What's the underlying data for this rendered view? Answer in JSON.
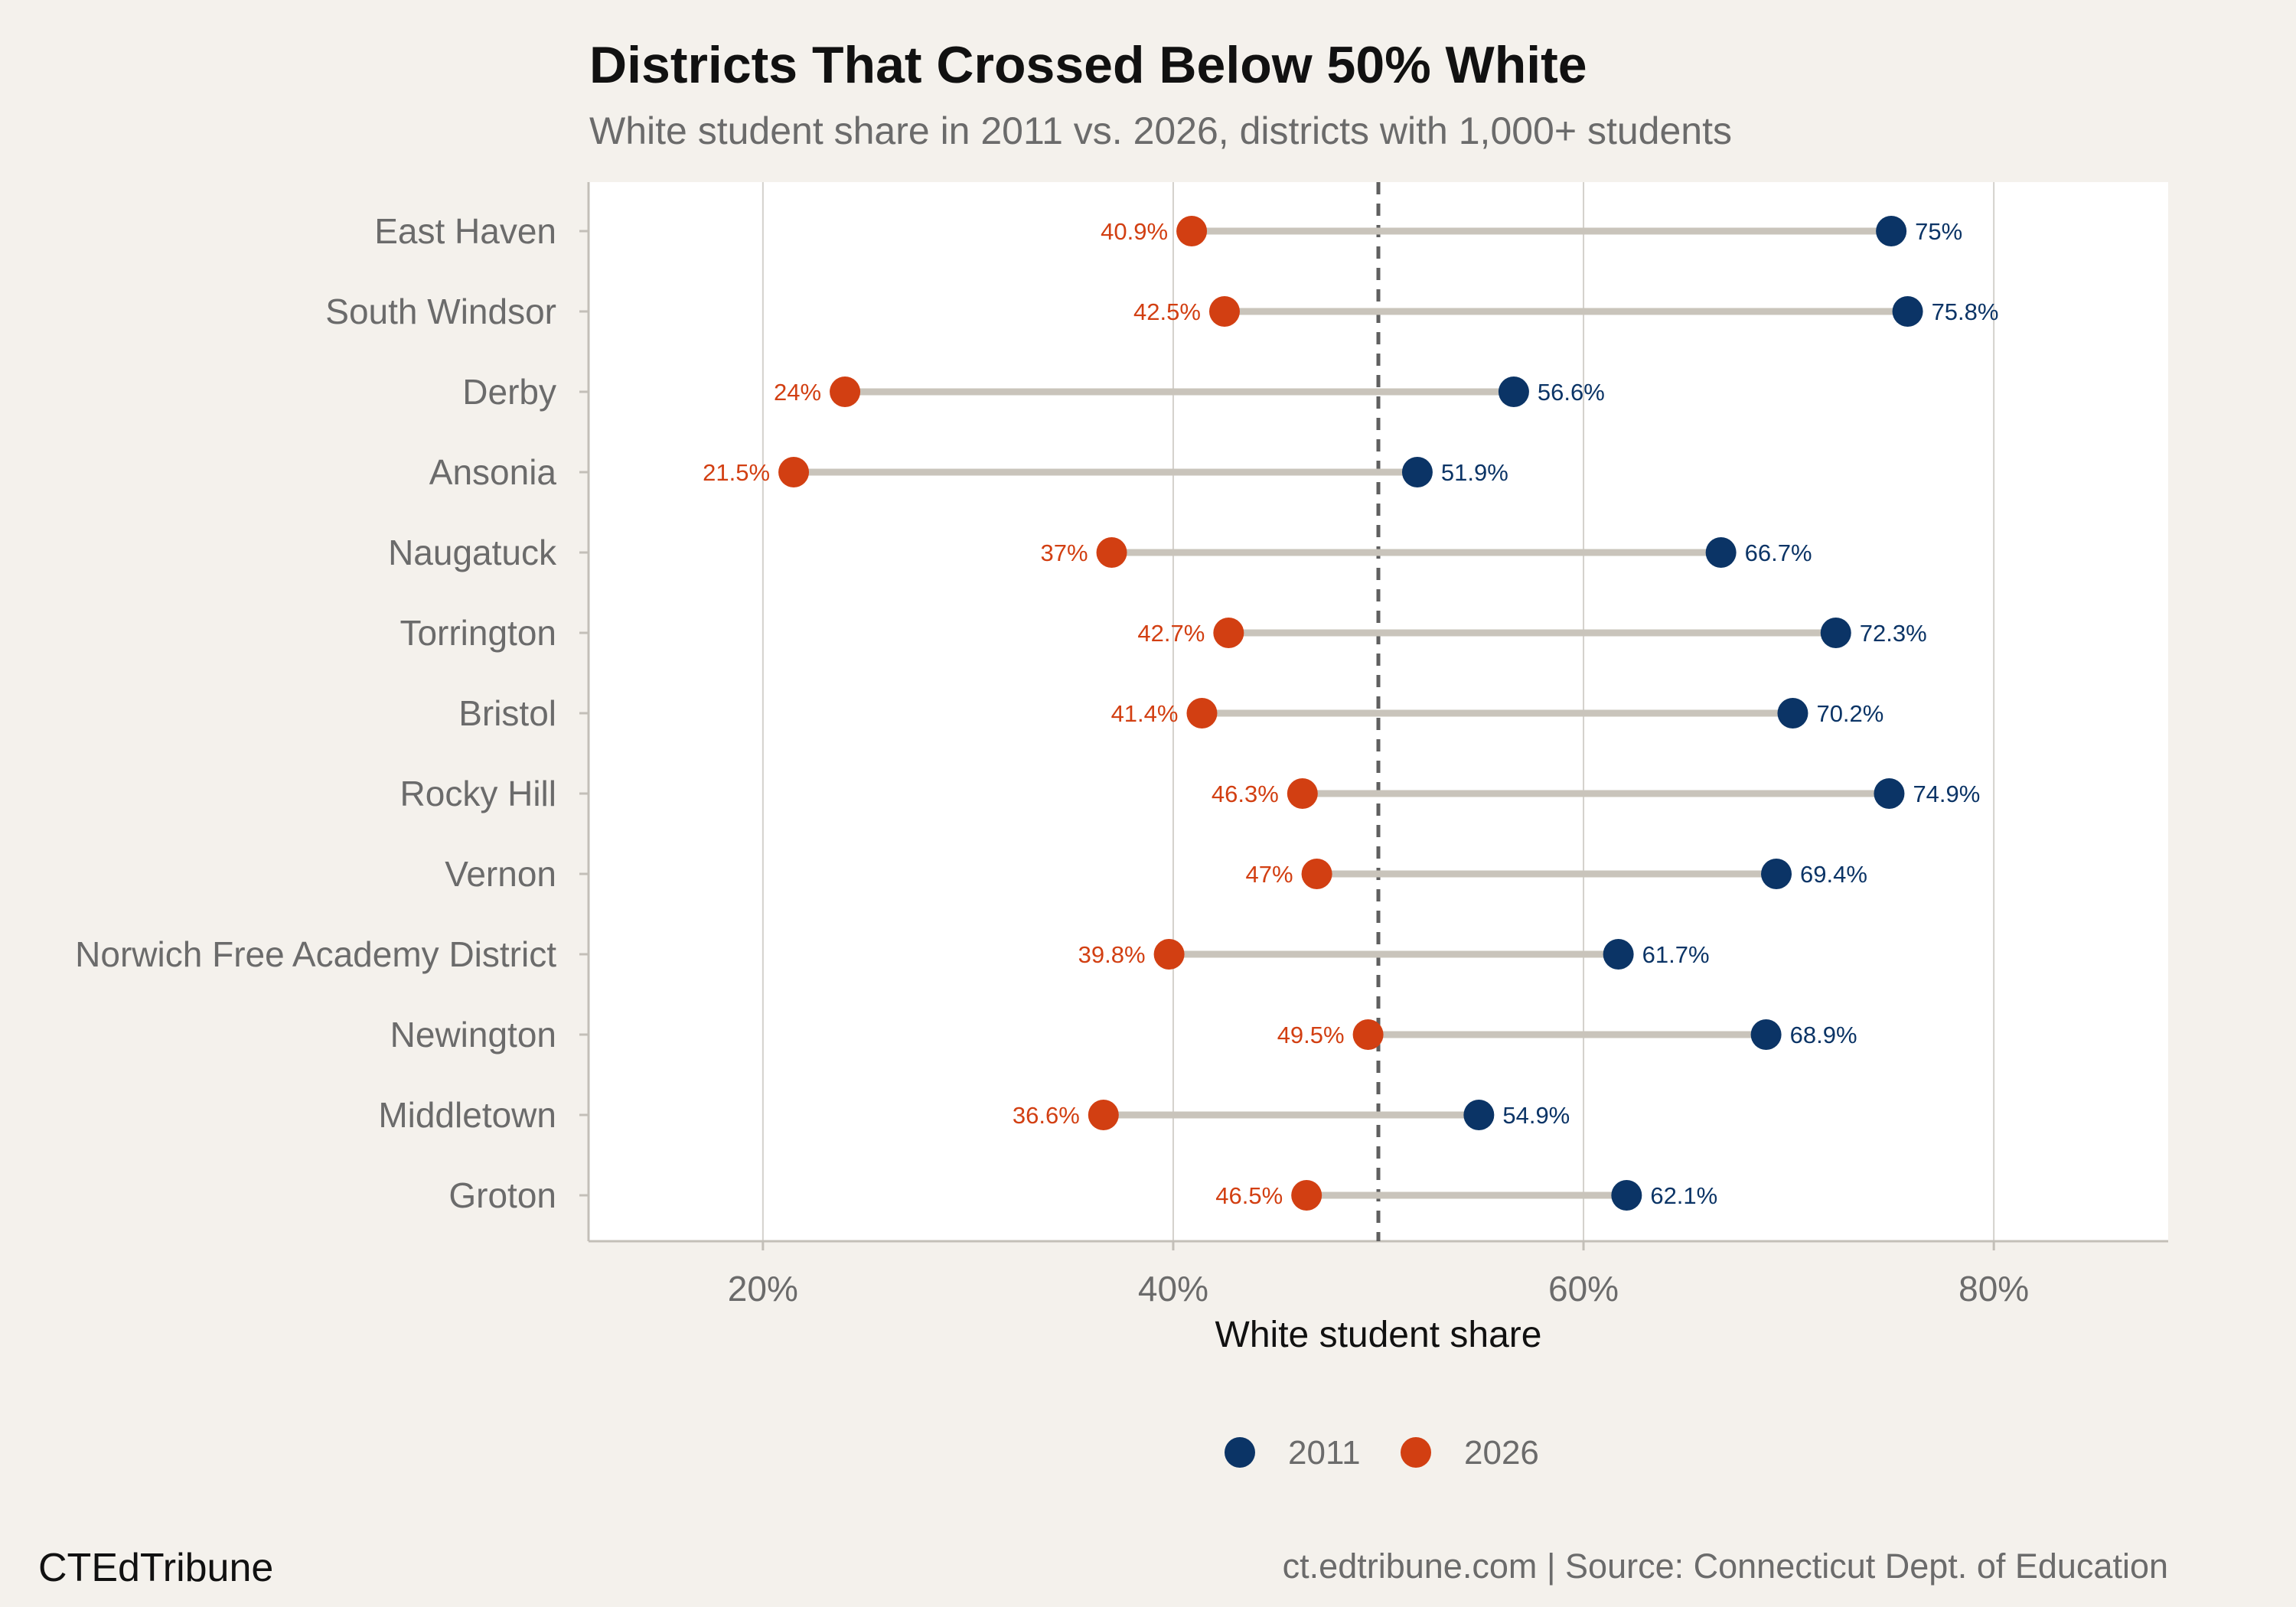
{
  "chart_data": {
    "type": "dumbbell",
    "title": "Districts That Crossed Below 50% White",
    "subtitle": "White student share in 2011 vs. 2026, districts with 1,000+ students",
    "xlabel": "White student share",
    "xlim": [
      11.5,
      88.5
    ],
    "xticks": [
      20,
      40,
      60,
      80
    ],
    "xtick_labels": [
      "20%",
      "40%",
      "60%",
      "80%"
    ],
    "reference_line": 50,
    "grid": true,
    "legend_position": "bottom",
    "categories": [
      "East Haven",
      "South Windsor",
      "Derby",
      "Ansonia",
      "Naugatuck",
      "Torrington",
      "Bristol",
      "Rocky Hill",
      "Vernon",
      "Norwich Free Academy District",
      "Newington",
      "Middletown",
      "Groton"
    ],
    "series": [
      {
        "name": "2011",
        "color": "#0b3466",
        "values": [
          75.0,
          75.8,
          56.6,
          51.9,
          66.7,
          72.3,
          70.2,
          74.9,
          69.4,
          61.7,
          68.9,
          54.9,
          62.1
        ],
        "labels": [
          "75%",
          "75.8%",
          "56.6%",
          "51.9%",
          "66.7%",
          "72.3%",
          "70.2%",
          "74.9%",
          "69.4%",
          "61.7%",
          "68.9%",
          "54.9%",
          "62.1%"
        ]
      },
      {
        "name": "2026",
        "color": "#d23f12",
        "values": [
          40.9,
          42.5,
          24.0,
          21.5,
          37.0,
          42.7,
          41.4,
          46.3,
          47.0,
          39.8,
          49.5,
          36.6,
          46.5
        ],
        "labels": [
          "40.9%",
          "42.5%",
          "24%",
          "21.5%",
          "37%",
          "42.7%",
          "41.4%",
          "46.3%",
          "47%",
          "39.8%",
          "49.5%",
          "36.6%",
          "46.5%"
        ]
      }
    ]
  },
  "footer": {
    "brand": "CTEdTribune",
    "source": "ct.edtribune.com | Source: Connecticut Dept. of Education"
  },
  "colors": {
    "background": "#f4f1ec",
    "panel": "#ffffff",
    "connector": "#c9c4bb",
    "gridline": "#d4d1cc",
    "reference_line": "#5f5f5f"
  }
}
